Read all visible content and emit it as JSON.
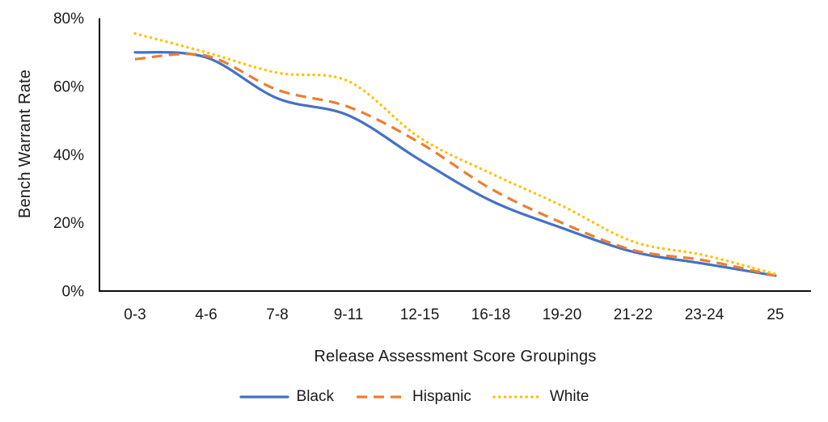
{
  "chart_data": {
    "type": "line",
    "title": "",
    "xlabel": "Release Assessment Score Groupings",
    "ylabel": "Bench Warrant Rate",
    "categories": [
      "0-3",
      "4-6",
      "7-8",
      "9-11",
      "12-15",
      "16-18",
      "19-20",
      "21-22",
      "23-24",
      "25"
    ],
    "series": [
      {
        "name": "Black",
        "color": "#4472C4",
        "line_style": "solid",
        "values": [
          70,
          68.5,
          56.5,
          51.5,
          38.5,
          26.5,
          18.5,
          11.5,
          8,
          4.5
        ]
      },
      {
        "name": "Hispanic",
        "color": "#ED7D31",
        "line_style": "dashed",
        "values": [
          68,
          69,
          59,
          54,
          43.5,
          30,
          20,
          12,
          9,
          4.5
        ]
      },
      {
        "name": "White",
        "color": "#FFC000",
        "line_style": "dotted",
        "values": [
          75.5,
          70,
          64,
          61.5,
          45,
          34.5,
          25,
          14.5,
          10.5,
          5
        ]
      }
    ],
    "ylim": [
      0,
      80
    ],
    "y_ticks": [
      {
        "value": 0,
        "label": "0%"
      },
      {
        "value": 20,
        "label": "20%"
      },
      {
        "value": 40,
        "label": "40%"
      },
      {
        "value": 60,
        "label": "60%"
      },
      {
        "value": 80,
        "label": "80%"
      }
    ],
    "grid": false,
    "legend_position": "bottom",
    "smoothed": true
  },
  "colors": {
    "axis": "#0d0d0d",
    "tick_text": "#1a1a1a",
    "background": "#ffffff"
  }
}
